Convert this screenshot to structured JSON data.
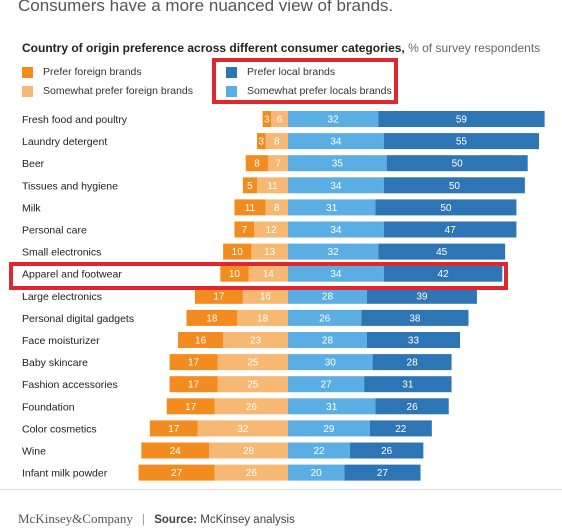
{
  "headline": "Consumers have a more nuanced view of brands.",
  "subtitle": {
    "title": "Country of origin preference across different consumer categories,",
    "unit": "% of survey respondents"
  },
  "legend": [
    {
      "label": "Prefer foreign brands",
      "color": "#f28c1e"
    },
    {
      "label": "Somewhat prefer foreign brands",
      "color": "#f6b873"
    },
    {
      "label": "Prefer local brands",
      "color": "#2e75b6"
    },
    {
      "label": "Somewhat prefer locals brands",
      "color": "#5aaee3"
    }
  ],
  "colors": {
    "prefer_foreign": "#f28c1e",
    "somewhat_foreign": "#f6b873",
    "somewhat_local": "#5aaee3",
    "prefer_local": "#2e75b6",
    "highlight": "#e0272f"
  },
  "highlighted_category": "Apparel and footwear",
  "chart_data": {
    "type": "bar",
    "orientation": "horizontal-diverging-stacked",
    "categories": [
      "Fresh food and poultry",
      "Laundry detergent",
      "Beer",
      "Tissues and hygiene",
      "Milk",
      "Personal care",
      "Small electronics",
      "Apparel and footwear",
      "Large electronics",
      "Personal digital gadgets",
      "Face moisturizer",
      "Baby skincare",
      "Fashion accessories",
      "Foundation",
      "Color cosmetics",
      "Wine",
      "Infant milk powder"
    ],
    "series": [
      {
        "name": "Prefer foreign brands",
        "side": "foreign",
        "values": [
          3,
          3,
          8,
          5,
          11,
          7,
          10,
          10,
          17,
          18,
          16,
          17,
          17,
          17,
          17,
          24,
          27
        ]
      },
      {
        "name": "Somewhat prefer foreign brands",
        "side": "foreign",
        "values": [
          6,
          8,
          7,
          11,
          8,
          12,
          13,
          14,
          16,
          18,
          23,
          25,
          25,
          26,
          32,
          28,
          26
        ]
      },
      {
        "name": "Somewhat prefer locals brands",
        "side": "local",
        "values": [
          32,
          34,
          35,
          34,
          31,
          34,
          32,
          34,
          28,
          26,
          28,
          30,
          27,
          31,
          29,
          22,
          20
        ]
      },
      {
        "name": "Prefer local brands",
        "side": "local",
        "values": [
          59,
          55,
          50,
          50,
          50,
          47,
          45,
          42,
          39,
          38,
          33,
          28,
          31,
          26,
          22,
          26,
          27
        ]
      }
    ]
  },
  "footer": {
    "logo": "McKinsey&Company",
    "separator": "|",
    "source_label": "Source:",
    "source_text": "McKinsey analysis"
  }
}
